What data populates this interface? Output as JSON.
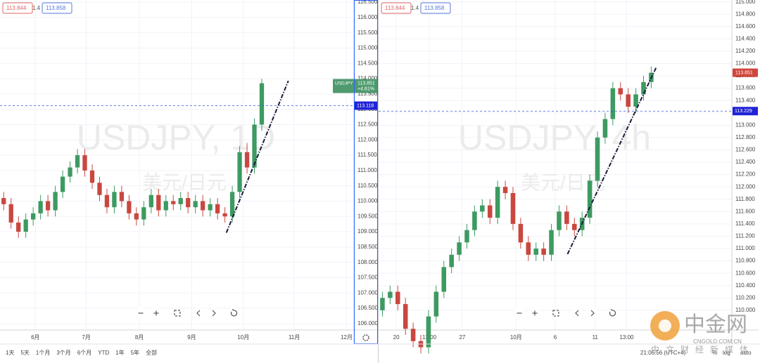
{
  "chart_data": [
    {
      "type": "candlestick",
      "watermark": "USDJPY, 1D",
      "watermark_sub": "美元/日元",
      "symbol_tag": "USDJPY",
      "change": "+4.81%",
      "legend": {
        "bid": 113.844,
        "spread": 1.4,
        "ask": 113.858
      },
      "up_color": "#3d9a61",
      "down_color": "#c9473f",
      "xlim": [
        0,
        48
      ],
      "ylim": [
        105.79,
        116.57
      ],
      "xticks": [
        {
          "value": 4.8,
          "label": "6月"
        },
        {
          "value": 11.7,
          "label": "7月"
        },
        {
          "value": 18.9,
          "label": "8月"
        },
        {
          "value": 26.0,
          "label": "9月"
        },
        {
          "value": 33.0,
          "label": "10月"
        },
        {
          "value": 39.9,
          "label": "11月"
        },
        {
          "value": 47.0,
          "label": "12月"
        }
      ],
      "yticks": [
        {
          "value": 106,
          "label": "106.000"
        },
        {
          "value": 106.5,
          "label": "106.500"
        },
        {
          "value": 107,
          "label": "107.000"
        },
        {
          "value": 107.5,
          "label": "107.500"
        },
        {
          "value": 108,
          "label": "108.000"
        },
        {
          "value": 108.5,
          "label": "108.500"
        },
        {
          "value": 109,
          "label": "109.000"
        },
        {
          "value": 109.5,
          "label": "109.500"
        },
        {
          "value": 110,
          "label": "110.000"
        },
        {
          "value": 110.5,
          "label": "110.500"
        },
        {
          "value": 111,
          "label": "111.000"
        },
        {
          "value": 111.5,
          "label": "111.500"
        },
        {
          "value": 112,
          "label": "112.000"
        },
        {
          "value": 112.5,
          "label": "112.500"
        },
        {
          "value": 113,
          "label": "113.000"
        },
        {
          "value": 113.5,
          "label": "113.500"
        },
        {
          "value": 114,
          "label": "114.000"
        },
        {
          "value": 114.5,
          "label": "114.500"
        },
        {
          "value": 115,
          "label": "115.000"
        },
        {
          "value": 115.5,
          "label": "115.500"
        },
        {
          "value": 116,
          "label": "116.000"
        },
        {
          "value": 116.5,
          "label": "116.500"
        }
      ],
      "open": [
        110.1,
        109.9,
        109.3,
        109.0,
        109.4,
        109.6,
        110.0,
        109.7,
        110.3,
        110.8,
        111.1,
        111.5,
        111.0,
        110.6,
        110.2,
        109.8,
        110.3,
        110.0,
        109.6,
        109.4,
        109.8,
        110.2,
        109.7,
        110.0,
        109.9,
        110.1,
        109.8,
        110.0,
        109.7,
        109.9,
        109.6,
        109.5,
        110.3,
        111.6,
        111.1,
        112.5
      ],
      "high": [
        110.3,
        110.1,
        109.5,
        109.6,
        109.8,
        110.2,
        110.2,
        110.5,
        111.0,
        111.3,
        111.7,
        111.7,
        111.2,
        110.8,
        110.4,
        110.5,
        110.5,
        110.2,
        109.8,
        110.0,
        110.4,
        110.4,
        110.2,
        110.2,
        110.3,
        110.3,
        110.2,
        110.2,
        110.1,
        110.1,
        109.8,
        110.5,
        111.8,
        111.9,
        112.7,
        114.0
      ],
      "low": [
        109.7,
        109.1,
        108.8,
        108.8,
        109.2,
        109.4,
        109.5,
        109.5,
        110.1,
        110.6,
        110.9,
        110.8,
        110.4,
        110.0,
        109.6,
        109.6,
        109.8,
        109.4,
        109.2,
        109.2,
        109.6,
        109.5,
        109.5,
        109.7,
        109.7,
        109.6,
        109.6,
        109.5,
        109.5,
        109.4,
        109.3,
        109.3,
        110.1,
        110.9,
        110.9,
        112.3
      ],
      "close": [
        109.9,
        109.3,
        109.0,
        109.4,
        109.6,
        110.0,
        109.7,
        110.3,
        110.8,
        111.1,
        111.5,
        111.0,
        110.6,
        110.2,
        109.8,
        110.3,
        110.0,
        109.6,
        109.4,
        109.8,
        110.2,
        109.7,
        110.0,
        109.9,
        110.1,
        109.8,
        110.0,
        109.7,
        109.9,
        109.6,
        109.5,
        110.3,
        111.6,
        111.1,
        112.5,
        113.85
      ],
      "last_price": 113.851,
      "hline": 113.118,
      "trend_line": {
        "x": [
          30.7,
          39.1
        ],
        "y": [
          108.97,
          113.93
        ]
      }
    },
    {
      "type": "candlestick",
      "watermark": "USDJPY, 4h",
      "watermark_sub": "美元/日元",
      "legend": {
        "bid": 113.844,
        "spread": 1.4,
        "ask": 113.858
      },
      "up_color": "#3d9a61",
      "down_color": "#c9473f",
      "xlim": [
        0,
        46
      ],
      "ylim": [
        109.68,
        115.03
      ],
      "xticks": [
        {
          "value": 2.3,
          "label": "20"
        },
        {
          "value": 6.6,
          "label": "13:00"
        },
        {
          "value": 10.9,
          "label": "27"
        },
        {
          "value": 17.9,
          "label": "10月"
        },
        {
          "value": 23.0,
          "label": "6"
        },
        {
          "value": 28.2,
          "label": "11"
        },
        {
          "value": 32.3,
          "label": "13:00"
        }
      ],
      "yticks": [
        {
          "value": 110,
          "label": "110.000"
        },
        {
          "value": 110.2,
          "label": "110.200"
        },
        {
          "value": 110.4,
          "label": "110.400"
        },
        {
          "value": 110.6,
          "label": "110.600"
        },
        {
          "value": 110.8,
          "label": "110.800"
        },
        {
          "value": 111,
          "label": "111.000"
        },
        {
          "value": 111.2,
          "label": "111.200"
        },
        {
          "value": 111.4,
          "label": "111.400"
        },
        {
          "value": 111.6,
          "label": "111.600"
        },
        {
          "value": 111.8,
          "label": "111.800"
        },
        {
          "value": 112,
          "label": "112.000"
        },
        {
          "value": 112.2,
          "label": "112.200"
        },
        {
          "value": 112.4,
          "label": "112.400"
        },
        {
          "value": 112.6,
          "label": "112.600"
        },
        {
          "value": 112.8,
          "label": "112.800"
        },
        {
          "value": 113,
          "label": "113.000"
        },
        {
          "value": 113.2,
          "label": "113.200"
        },
        {
          "value": 113.4,
          "label": "113.400"
        },
        {
          "value": 113.6,
          "label": "113.600"
        },
        {
          "value": 113.8,
          "label": "113.800"
        },
        {
          "value": 114,
          "label": "114.000"
        },
        {
          "value": 114.2,
          "label": "114.200"
        },
        {
          "value": 114.4,
          "label": "114.400"
        },
        {
          "value": 114.6,
          "label": "114.600"
        },
        {
          "value": 114.8,
          "label": "114.800"
        },
        {
          "value": 115,
          "label": "115.000"
        }
      ],
      "open": [
        110.0,
        110.2,
        110.3,
        110.1,
        109.7,
        109.5,
        109.4,
        109.9,
        110.3,
        110.7,
        110.9,
        111.1,
        111.3,
        111.6,
        111.7,
        111.5,
        112.0,
        111.9,
        111.4,
        111.1,
        110.9,
        111.0,
        110.9,
        111.3,
        111.6,
        111.4,
        111.3,
        111.5,
        112.1,
        112.8,
        113.1,
        113.6,
        113.5,
        113.3,
        113.5,
        113.7
      ],
      "high": [
        110.3,
        110.4,
        110.4,
        110.2,
        109.8,
        109.6,
        110.0,
        110.4,
        110.8,
        111.0,
        111.2,
        111.4,
        111.7,
        111.8,
        111.8,
        112.1,
        112.1,
        112.0,
        111.5,
        111.2,
        111.1,
        111.1,
        111.4,
        111.7,
        111.7,
        111.5,
        111.6,
        112.2,
        112.9,
        113.2,
        113.7,
        113.7,
        113.6,
        113.6,
        113.8,
        113.95
      ],
      "low": [
        109.9,
        110.1,
        110.0,
        109.6,
        109.4,
        109.3,
        109.3,
        109.8,
        110.2,
        110.6,
        110.8,
        111.0,
        111.2,
        111.5,
        111.4,
        111.4,
        111.8,
        111.3,
        111.0,
        110.8,
        110.8,
        110.8,
        110.8,
        111.2,
        111.3,
        111.2,
        111.2,
        111.4,
        112.0,
        112.7,
        113.0,
        113.4,
        113.2,
        113.2,
        113.4,
        113.6
      ],
      "close": [
        110.2,
        110.3,
        110.1,
        109.7,
        109.5,
        109.4,
        109.9,
        110.3,
        110.7,
        110.9,
        111.1,
        111.3,
        111.6,
        111.7,
        111.5,
        112.0,
        111.9,
        111.4,
        111.1,
        110.9,
        111.0,
        110.9,
        111.3,
        111.6,
        111.4,
        111.3,
        111.5,
        112.1,
        112.8,
        113.1,
        113.6,
        113.5,
        113.3,
        113.5,
        113.7,
        113.85
      ],
      "last_price": 113.851,
      "hline": 113.229,
      "trend_line": {
        "x": [
          24.6,
          36.2
        ],
        "y": [
          110.91,
          113.95
        ]
      }
    }
  ],
  "toolbar": {
    "ranges": [
      "1天",
      "5天",
      "1个月",
      "3个月",
      "6个月",
      "YTD",
      "1年",
      "5年",
      "全部"
    ],
    "time": "21:06:56 (UTC+4)",
    "options": [
      "%",
      "log",
      "auto"
    ]
  },
  "logo": {
    "name": "中金网",
    "url": "CNGOLD.COM.CN",
    "slogan": "中文财经新媒体"
  }
}
